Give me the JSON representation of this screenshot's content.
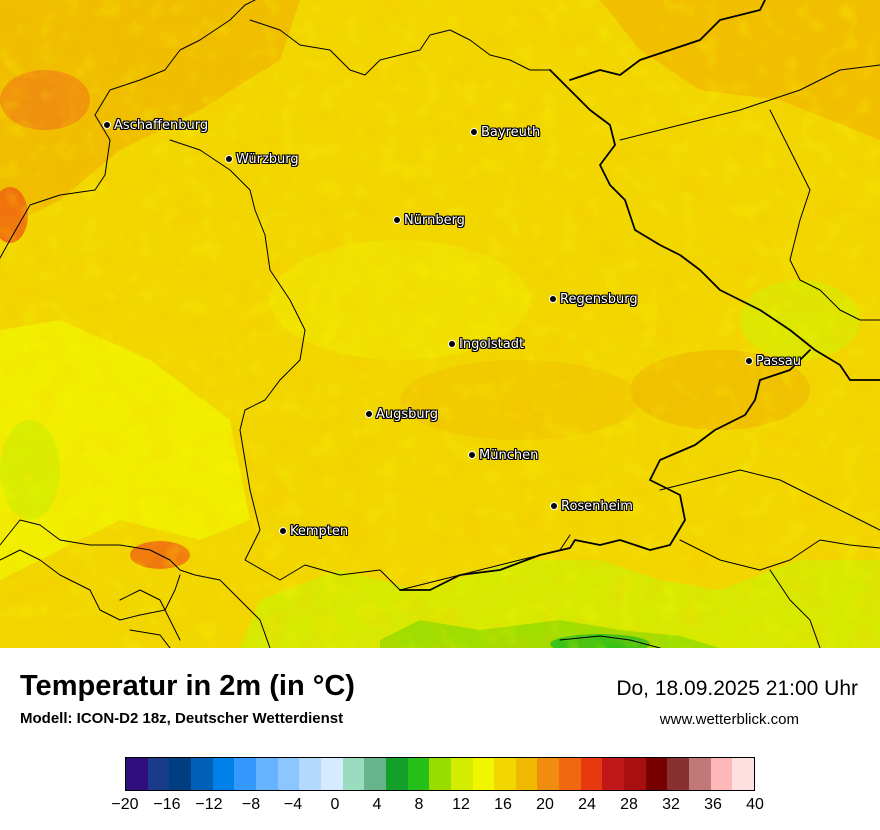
{
  "title": "Temperatur in 2m (in °C)",
  "model": "Modell: ICON-D2 18z, Deutscher Wetterdienst",
  "datetime": "Do, 18.09.2025 21:00 Uhr",
  "website": "www.wetterblick.com",
  "cities": [
    {
      "name": "Aschaffenburg"
    },
    {
      "name": "Würzburg"
    },
    {
      "name": "Bayreuth"
    },
    {
      "name": "Nürnberg"
    },
    {
      "name": "Regensburg"
    },
    {
      "name": "Ingolstadt"
    },
    {
      "name": "Passau"
    },
    {
      "name": "Augsburg"
    },
    {
      "name": "München"
    },
    {
      "name": "Rosenheim"
    },
    {
      "name": "Kempten"
    }
  ],
  "legend": {
    "colors": [
      "#2f0f7d",
      "#1a3a8a",
      "#003f7f",
      "#0060b8",
      "#0080e8",
      "#3399ff",
      "#66b3ff",
      "#8cc6ff",
      "#b3d9ff",
      "#d6ebff",
      "#99dcbf",
      "#66b38c",
      "#12a02a",
      "#26c01a",
      "#99dd00",
      "#d4ec00",
      "#f0f500",
      "#f2d600",
      "#f0b800",
      "#f08c10",
      "#f06810",
      "#e83810",
      "#c01818",
      "#a81010",
      "#780000",
      "#883030",
      "#c07878",
      "#ffb8b8",
      "#ffe0e0"
    ],
    "ticks": [
      "−20",
      "−16",
      "−12",
      "−8",
      "−4",
      "0",
      "4",
      "8",
      "12",
      "16",
      "20",
      "24",
      "28",
      "32",
      "36",
      "40"
    ],
    "min": -20,
    "max": 40
  }
}
